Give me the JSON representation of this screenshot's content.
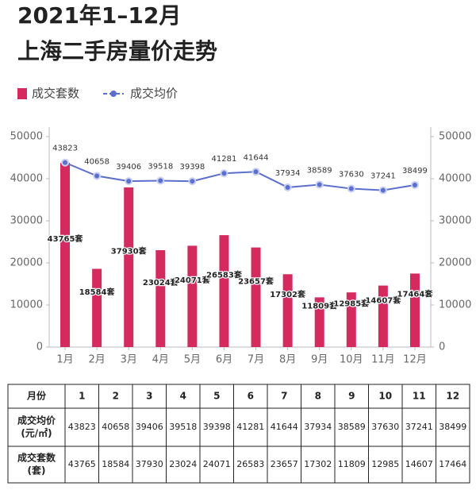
{
  "chart_data": {
    "type": "bar-line",
    "title": [
      "2021年1–12月",
      "上海二手房量价走势"
    ],
    "categories": [
      "1月",
      "2月",
      "3月",
      "4月",
      "5月",
      "6月",
      "7月",
      "8月",
      "9月",
      "10月",
      "11月",
      "12月"
    ],
    "series": [
      {
        "name": "成交套数",
        "type": "bar",
        "color": "#d42a5e",
        "axis": "y",
        "values": [
          43765,
          18584,
          37930,
          23024,
          24071,
          26583,
          23657,
          17302,
          11809,
          12985,
          14607,
          17464
        ],
        "value_labels": [
          "43765套",
          "18584套",
          "37930套",
          "23024套",
          "24071套",
          "26583套",
          "23657套",
          "17302套",
          "11809套",
          "12985套",
          "14607套",
          "17464套"
        ]
      },
      {
        "name": "成交均价",
        "type": "line",
        "color": "#5b6fcc",
        "axis": "y2",
        "values": [
          43823,
          40658,
          39406,
          39518,
          39398,
          41281,
          41644,
          37934,
          38589,
          37630,
          37241,
          38499
        ]
      }
    ],
    "ylim": [
      0,
      50000
    ],
    "yticks": [
      0,
      10000,
      20000,
      30000,
      40000,
      50000
    ],
    "y2lim": [
      0,
      50000
    ],
    "y2ticks": [
      0,
      10000,
      20000,
      30000,
      40000,
      50000
    ],
    "grid": false,
    "legend": "top-left"
  },
  "table": {
    "header": [
      "月份",
      "1",
      "2",
      "3",
      "4",
      "5",
      "6",
      "7",
      "8",
      "9",
      "10",
      "11",
      "12"
    ],
    "row_labels": [
      [
        "成交均价",
        "(元/㎡)"
      ],
      [
        "成交套数",
        "(套)"
      ]
    ]
  }
}
